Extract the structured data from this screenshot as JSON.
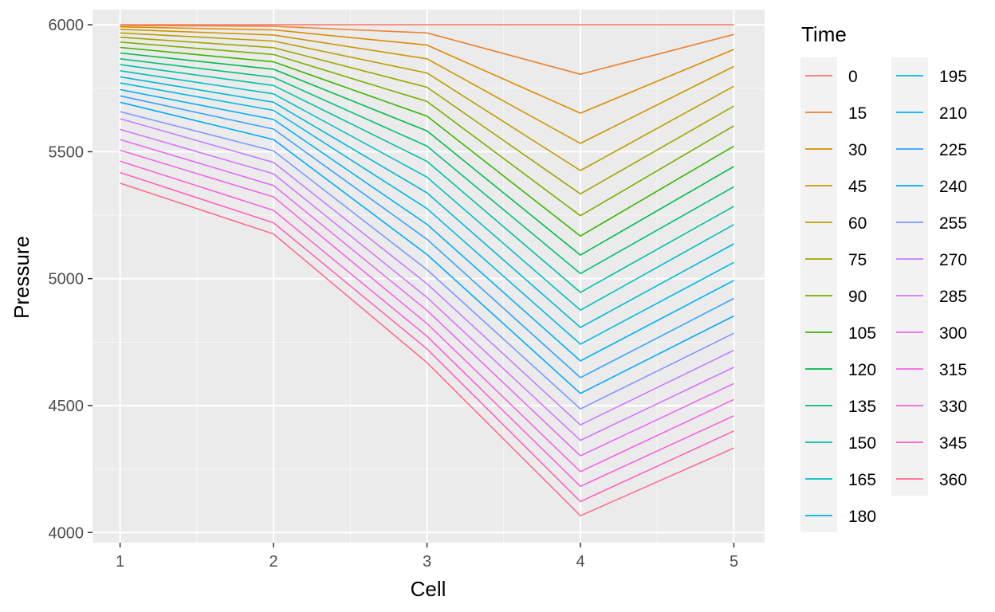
{
  "chart_data": {
    "type": "line",
    "title": "",
    "xlabel": "Cell",
    "ylabel": "Pressure",
    "x": [
      1,
      2,
      3,
      4,
      5
    ],
    "xlim": [
      0.82,
      5.2
    ],
    "ylim": [
      3960,
      6060
    ],
    "xticks": [
      1,
      2,
      3,
      4,
      5
    ],
    "yticks": [
      4000,
      4500,
      5000,
      5500,
      6000
    ],
    "grid": true,
    "legend": {
      "title": "Time",
      "placement": "right",
      "columns": 2
    },
    "series": [
      {
        "name": "0",
        "color": "#F8766D",
        "values": [
          6000,
          6000,
          6000,
          6000,
          6000
        ]
      },
      {
        "name": "15",
        "color": "#EA8331",
        "values": [
          5998,
          5994,
          5968,
          5805,
          5962
        ]
      },
      {
        "name": "30",
        "color": "#DE8C00",
        "values": [
          5992,
          5980,
          5920,
          5652,
          5903
        ]
      },
      {
        "name": "45",
        "color": "#CD9600",
        "values": [
          5982,
          5960,
          5866,
          5533,
          5836
        ]
      },
      {
        "name": "60",
        "color": "#BB9D00",
        "values": [
          5968,
          5936,
          5810,
          5426,
          5758
        ]
      },
      {
        "name": "75",
        "color": "#A3A500",
        "values": [
          5951,
          5910,
          5754,
          5334,
          5680
        ]
      },
      {
        "name": "90",
        "color": "#7CAE00",
        "values": [
          5932,
          5883,
          5698,
          5248,
          5602
        ]
      },
      {
        "name": "105",
        "color": "#39B600",
        "values": [
          5911,
          5854,
          5640,
          5168,
          5522
        ]
      },
      {
        "name": "120",
        "color": "#00BB4E",
        "values": [
          5889,
          5825,
          5582,
          5093,
          5442
        ]
      },
      {
        "name": "135",
        "color": "#00BF7D",
        "values": [
          5866,
          5793,
          5522,
          5020,
          5362
        ]
      },
      {
        "name": "150",
        "color": "#00C1A3",
        "values": [
          5843,
          5761,
          5462,
          4946,
          5285
        ]
      },
      {
        "name": "165",
        "color": "#00BFC4",
        "values": [
          5819,
          5728,
          5400,
          4876,
          5213
        ]
      },
      {
        "name": "180",
        "color": "#00B7D8",
        "values": [
          5795,
          5695,
          5338,
          4808,
          5137
        ]
      },
      {
        "name": "195",
        "color": "#00B8E7",
        "values": [
          5771,
          5663,
          5276,
          4742,
          5064
        ]
      },
      {
        "name": "210",
        "color": "#00B0F6",
        "values": [
          5745,
          5627,
          5214,
          4676,
          4993
        ]
      },
      {
        "name": "225",
        "color": "#35A2FF",
        "values": [
          5720,
          5589,
          5155,
          4610,
          4922
        ]
      },
      {
        "name": "240",
        "color": "#00A9FF",
        "values": [
          5695,
          5548,
          5095,
          4548,
          4853
        ]
      },
      {
        "name": "255",
        "color": "#7F96FF",
        "values": [
          5658,
          5503,
          5035,
          4487,
          4785
        ]
      },
      {
        "name": "270",
        "color": "#C77CFF",
        "values": [
          5630,
          5458,
          4980,
          4424,
          4718
        ]
      },
      {
        "name": "285",
        "color": "#D575FE",
        "values": [
          5588,
          5413,
          4926,
          4363,
          4651
        ]
      },
      {
        "name": "300",
        "color": "#E76BF3",
        "values": [
          5548,
          5367,
          4875,
          4302,
          4587
        ]
      },
      {
        "name": "315",
        "color": "#F365E6",
        "values": [
          5506,
          5322,
          4823,
          4240,
          4524
        ]
      },
      {
        "name": "330",
        "color": "#FA62DB",
        "values": [
          5463,
          5269,
          4773,
          4182,
          4460
        ]
      },
      {
        "name": "345",
        "color": "#FF62BC",
        "values": [
          5418,
          5220,
          4723,
          4122,
          4400
        ]
      },
      {
        "name": "360",
        "color": "#FF6C91",
        "values": [
          5376,
          5176,
          4669,
          4066,
          4333
        ]
      }
    ]
  }
}
